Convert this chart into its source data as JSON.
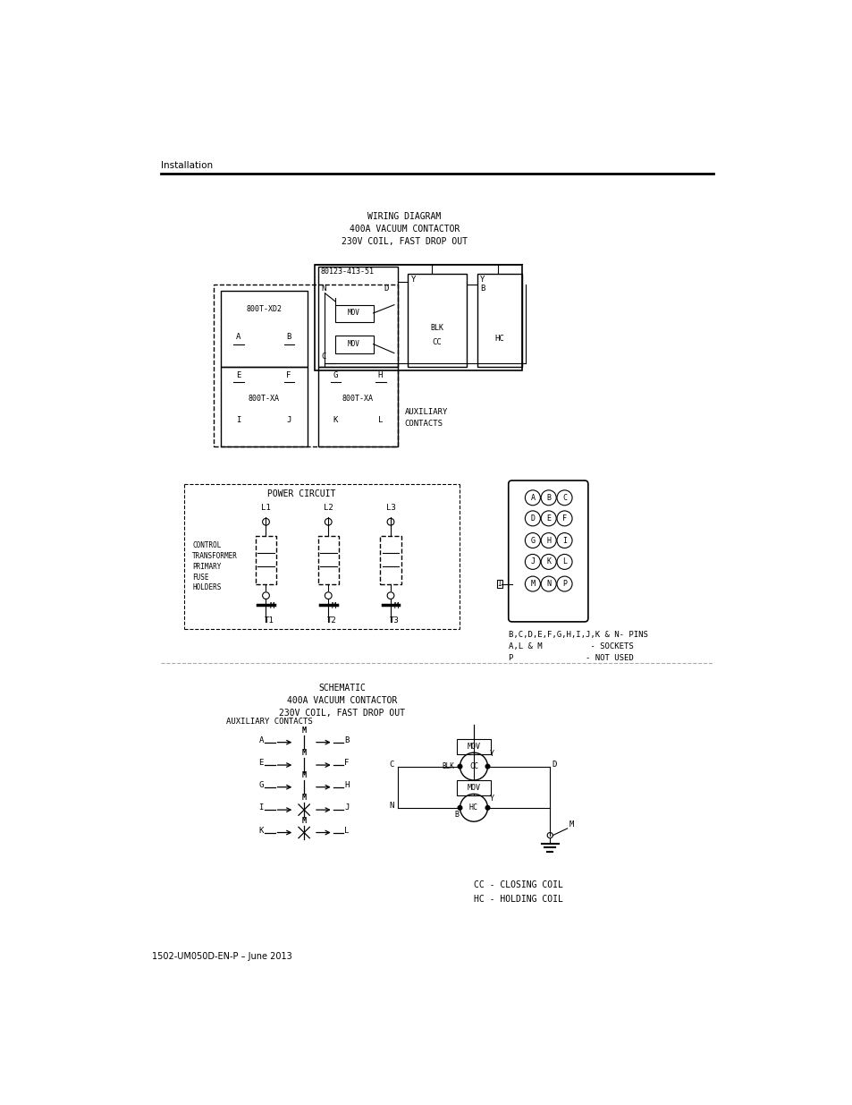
{
  "page_title": "Installation",
  "footer_text": "1502-UM050D-EN-P – June 2013",
  "wiring_diagram_title": "WIRING DIAGRAM\n400A VACUUM CONTACTOR\n230V COIL, FAST DROP OUT",
  "schematic_title": "SCHEMATIC\n400A VACUUM CONTACTOR\n230V COIL, FAST DROP OUT",
  "bg_color": "#ffffff",
  "line_color": "#000000",
  "text_color": "#000000"
}
